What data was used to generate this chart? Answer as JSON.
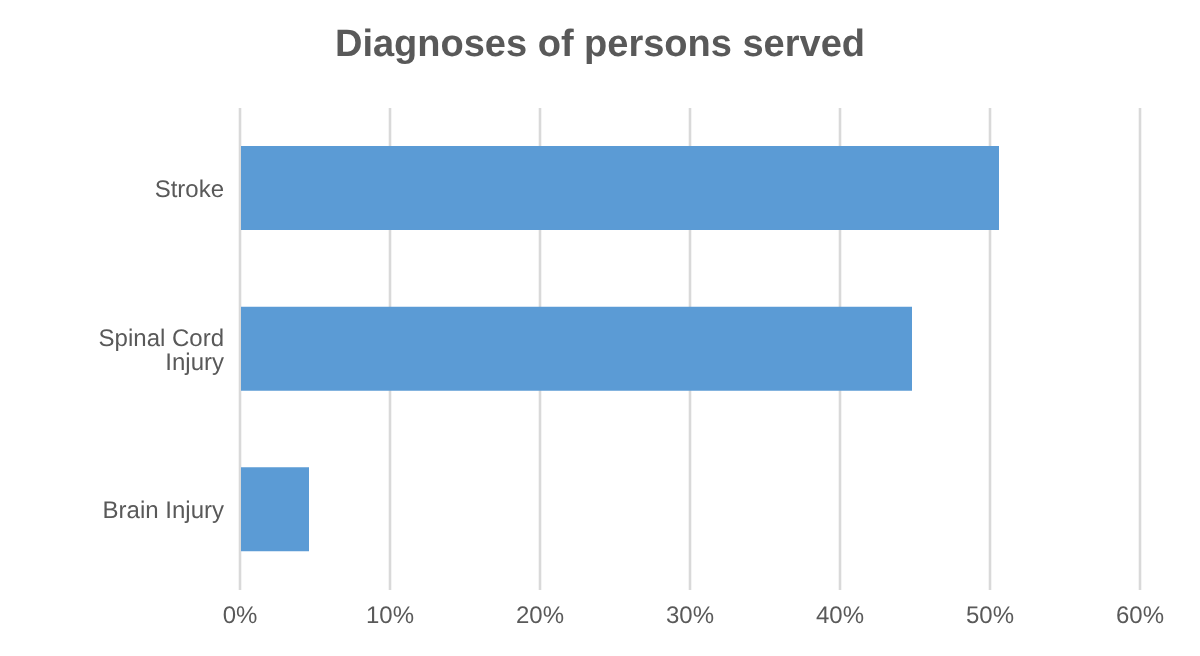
{
  "chart_data": {
    "type": "bar",
    "orientation": "horizontal",
    "title": "Diagnoses of persons served",
    "categories": [
      "Stroke",
      "Spinal Cord Injury",
      "Brain Injury"
    ],
    "values": [
      50.6,
      44.8,
      4.6
    ],
    "color": "#5b9bd5",
    "xlim": [
      0,
      60
    ],
    "xticks": [
      {
        "value": 0,
        "label": "0%"
      },
      {
        "value": 10,
        "label": "10%"
      },
      {
        "value": 20,
        "label": "20%"
      },
      {
        "value": 30,
        "label": "30%"
      },
      {
        "value": 40,
        "label": "40%"
      },
      {
        "value": 50,
        "label": "50%"
      },
      {
        "value": 60,
        "label": "60%"
      }
    ],
    "grid": "x",
    "legend": false
  }
}
